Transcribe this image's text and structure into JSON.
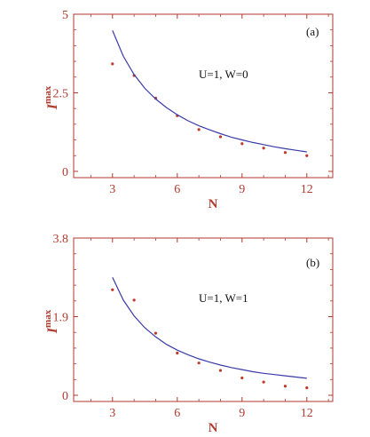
{
  "colors": {
    "axis": "#b03a2e",
    "point": "#c0392b",
    "curve": "#3a3aa8"
  },
  "chart_data": [
    {
      "type": "scatter",
      "panel": "(a)",
      "annotation": "U=1, W=0",
      "xlabel": "N",
      "ylabel": "I",
      "ylabel_sup": "max",
      "xlim": [
        1.2,
        13.2
      ],
      "ylim": [
        -0.2,
        5
      ],
      "xticks": [
        3,
        6,
        9,
        12
      ],
      "xtick_labels": [
        "3",
        "6",
        "9",
        "12"
      ],
      "yticks": [
        0,
        2.5,
        5
      ],
      "ytick_labels": [
        "0",
        "2.5",
        "5"
      ],
      "grid": false,
      "series": [
        {
          "kind": "points",
          "x": [
            3,
            4,
            5,
            6,
            7,
            8,
            9,
            10,
            11,
            12
          ],
          "y": [
            3.42,
            3.05,
            2.33,
            1.77,
            1.33,
            1.1,
            0.88,
            0.74,
            0.6,
            0.5
          ]
        },
        {
          "kind": "curve",
          "x": [
            3,
            3.5,
            4,
            4.5,
            5,
            5.5,
            6,
            6.5,
            7,
            7.5,
            8,
            8.5,
            9,
            9.5,
            10,
            10.5,
            11,
            11.5,
            12
          ],
          "y": [
            4.48,
            3.66,
            3.08,
            2.64,
            2.3,
            2.03,
            1.8,
            1.61,
            1.45,
            1.32,
            1.2,
            1.09,
            1.0,
            0.92,
            0.85,
            0.78,
            0.72,
            0.67,
            0.62
          ]
        }
      ]
    },
    {
      "type": "scatter",
      "panel": "(b)",
      "annotation": "U=1, W=1",
      "xlabel": "N",
      "ylabel": "I",
      "ylabel_sup": "max",
      "xlim": [
        1.2,
        13.2
      ],
      "ylim": [
        -0.15,
        3.8
      ],
      "xticks": [
        3,
        6,
        9,
        12
      ],
      "xtick_labels": [
        "3",
        "6",
        "9",
        "12"
      ],
      "yticks": [
        0,
        1.9,
        3.8
      ],
      "ytick_labels": [
        "0",
        "1.9",
        "3.8"
      ],
      "grid": false,
      "series": [
        {
          "kind": "points",
          "x": [
            3,
            4,
            5,
            6,
            7,
            8,
            9,
            10,
            11,
            12
          ],
          "y": [
            2.55,
            2.3,
            1.5,
            1.02,
            0.78,
            0.6,
            0.42,
            0.32,
            0.22,
            0.18
          ]
        },
        {
          "kind": "curve",
          "x": [
            3,
            3.5,
            4,
            4.5,
            5,
            5.5,
            6,
            6.5,
            7,
            7.5,
            8,
            8.5,
            9,
            9.5,
            10,
            10.5,
            11,
            11.5,
            12
          ],
          "y": [
            2.85,
            2.3,
            1.92,
            1.63,
            1.41,
            1.23,
            1.09,
            0.98,
            0.88,
            0.8,
            0.73,
            0.67,
            0.62,
            0.57,
            0.53,
            0.5,
            0.47,
            0.44,
            0.41
          ]
        }
      ]
    }
  ]
}
